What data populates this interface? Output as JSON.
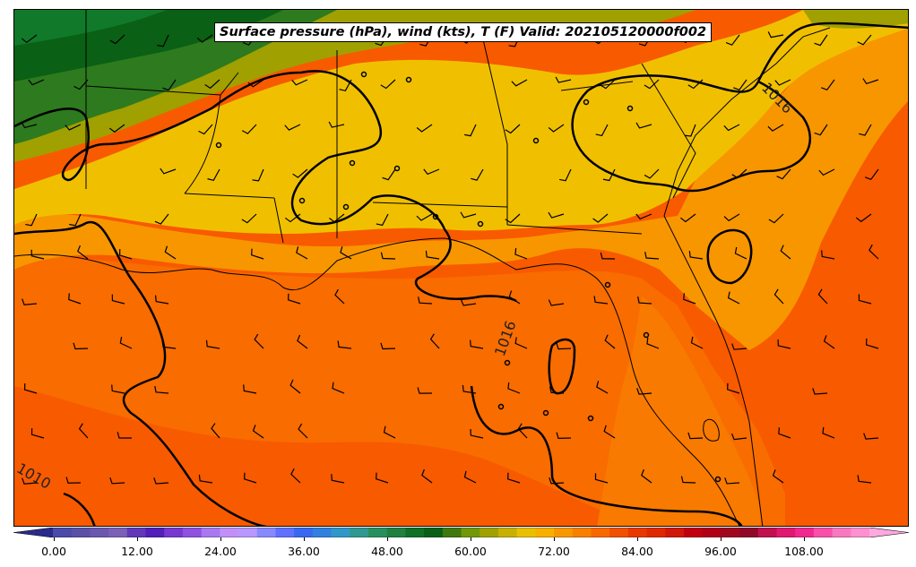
{
  "title": "Surface pressure (hPa), wind (kts), T (F) Valid: 202105120000f002",
  "colorbar": {
    "ticks": [
      "0.00",
      "12.00",
      "24.00",
      "36.00",
      "48.00",
      "60.00",
      "72.00",
      "84.00",
      "96.00",
      "108.00"
    ],
    "colors": [
      "#4a4aa8",
      "#5a50a8",
      "#6a58b0",
      "#7a60b8",
      "#6038b8",
      "#5020b8",
      "#7838d0",
      "#9050e0",
      "#a878f0",
      "#c090f8",
      "#b898ff",
      "#8888ff",
      "#6070ff",
      "#3868f0",
      "#3080e0",
      "#3098c8",
      "#309890",
      "#289060",
      "#208040",
      "#107028",
      "#086018",
      "#407810",
      "#709808",
      "#a0a000",
      "#c8b000",
      "#e8c000",
      "#f8b000",
      "#f89800",
      "#f88000",
      "#f86800",
      "#f05000",
      "#e83800",
      "#e02800",
      "#d01808",
      "#c00010",
      "#b00018",
      "#a00820",
      "#900828",
      "#c01050",
      "#e01870",
      "#f02890",
      "#f850a8",
      "#f878c0",
      "#ff90d0"
    ]
  },
  "contour_labels": [
    "1016",
    "1016",
    "1010"
  ],
  "palette": {
    "gulf_warm": "#f85a00",
    "gulf_mid": "#f87000",
    "land_orange": "#f89600",
    "land_yellow": "#f0c000",
    "land_olive": "#a0a000",
    "land_green": "#2e7a1e",
    "land_darkgreen": "#0a6014"
  }
}
